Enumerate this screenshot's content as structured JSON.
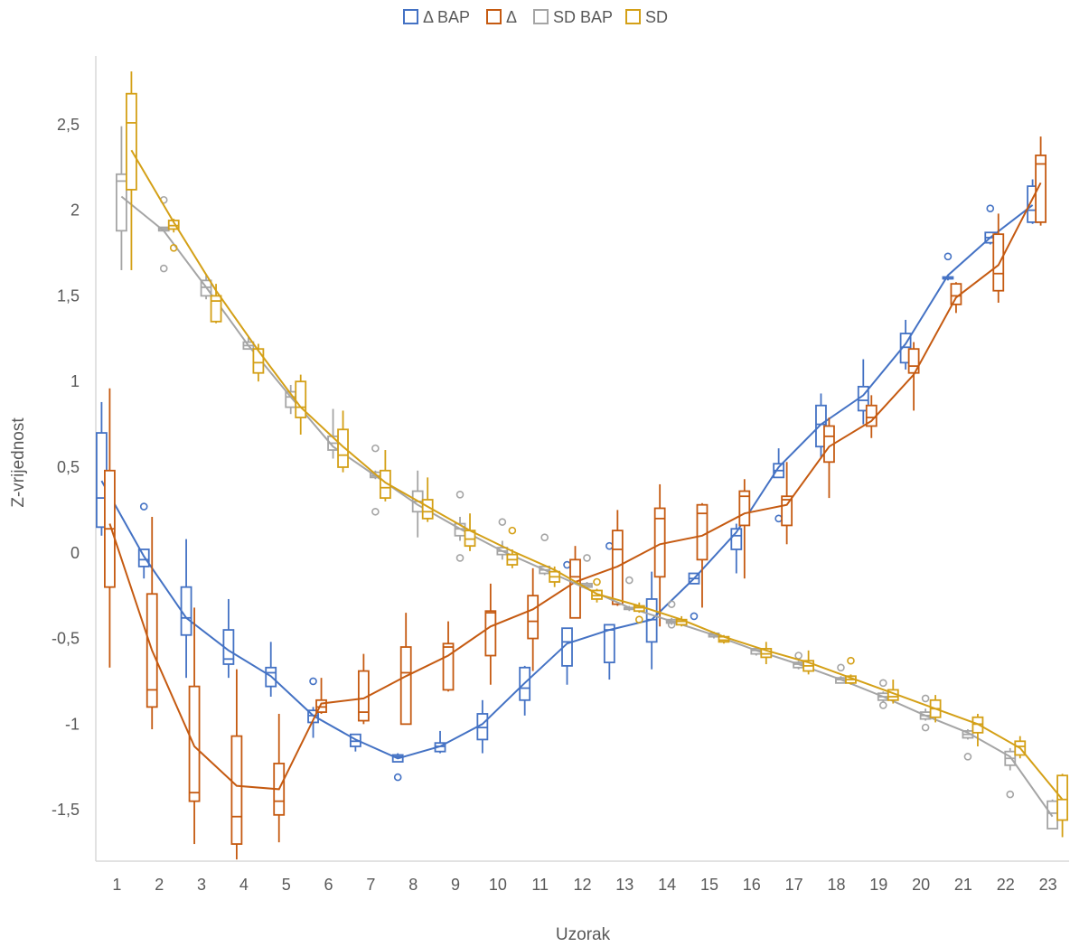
{
  "chart_data": {
    "type": "boxplot",
    "title": "",
    "xlabel": "Uzorak",
    "ylabel": "Z-vrijednost",
    "ylim": [
      -1.8,
      2.9
    ],
    "ytick_values": [
      -1.5,
      -1,
      -0.5,
      0,
      0.5,
      1,
      1.5,
      2,
      2.5
    ],
    "ytick_labels": [
      "-1,5",
      "-1",
      "-0,5",
      "0",
      "0,5",
      "1",
      "1,5",
      "2",
      "2,5"
    ],
    "categories": [
      "1",
      "2",
      "3",
      "4",
      "5",
      "6",
      "7",
      "8",
      "9",
      "10",
      "11",
      "12",
      "13",
      "14",
      "15",
      "16",
      "17",
      "18",
      "19",
      "20",
      "21",
      "22",
      "23"
    ],
    "legend_position": "top",
    "grid": false,
    "series": [
      {
        "name": "Δ BAP",
        "color": "#4472C4",
        "mean": [
          0.42,
          -0.02,
          -0.38,
          -0.57,
          -0.72,
          -0.95,
          -1.09,
          -1.2,
          -1.13,
          -1.0,
          -0.76,
          -0.53,
          -0.45,
          -0.39,
          -0.15,
          0.12,
          0.5,
          0.75,
          0.92,
          1.22,
          1.62,
          1.84,
          2.03
        ],
        "boxes": [
          [
            0.1,
            0.15,
            0.32,
            0.7,
            0.88
          ],
          [
            -0.15,
            -0.08,
            -0.04,
            0.02,
            0.02
          ],
          [
            -0.73,
            -0.48,
            -0.38,
            -0.2,
            0.08
          ],
          [
            -0.73,
            -0.65,
            -0.62,
            -0.45,
            -0.27
          ],
          [
            -0.84,
            -0.78,
            -0.7,
            -0.67,
            -0.52
          ],
          [
            -1.08,
            -0.99,
            -0.95,
            -0.92,
            -0.9
          ],
          [
            -1.16,
            -1.13,
            -1.1,
            -1.06,
            -1.06
          ],
          [
            -1.22,
            -1.22,
            -1.19,
            -1.18,
            -1.17
          ],
          [
            -1.17,
            -1.16,
            -1.13,
            -1.11,
            -1.04
          ],
          [
            -1.17,
            -1.09,
            -1.02,
            -0.94,
            -0.86
          ],
          [
            -0.95,
            -0.86,
            -0.79,
            -0.67,
            -0.66
          ],
          [
            -0.77,
            -0.66,
            -0.52,
            -0.44,
            -0.44
          ],
          [
            -0.74,
            -0.64,
            -0.45,
            -0.42,
            -0.42
          ],
          [
            -0.68,
            -0.52,
            -0.39,
            -0.27,
            -0.11
          ],
          [
            -0.18,
            -0.18,
            -0.15,
            -0.12,
            -0.12
          ],
          [
            -0.12,
            0.02,
            0.1,
            0.14,
            0.17
          ],
          [
            0.44,
            0.44,
            0.48,
            0.52,
            0.61
          ],
          [
            0.55,
            0.62,
            0.75,
            0.86,
            0.93
          ],
          [
            0.75,
            0.83,
            0.89,
            0.97,
            1.13
          ],
          [
            1.07,
            1.11,
            1.2,
            1.28,
            1.36
          ],
          [
            1.59,
            1.6,
            1.6,
            1.61,
            1.62
          ],
          [
            1.8,
            1.81,
            1.84,
            1.87,
            1.87
          ],
          [
            1.92,
            1.93,
            2.0,
            2.14,
            2.18
          ]
        ],
        "outliers": [
          [],
          [
            0.27
          ],
          [],
          [],
          [],
          [
            -0.75
          ],
          [],
          [
            -1.31
          ],
          [],
          [],
          [],
          [
            -0.07
          ],
          [
            0.04
          ],
          [],
          [
            -0.37
          ],
          [],
          [
            0.2
          ],
          [],
          [],
          [],
          [
            1.73
          ],
          [
            2.01
          ],
          []
        ]
      },
      {
        "name": "Δ",
        "color": "#C55A11",
        "mean": [
          0.17,
          -0.57,
          -1.13,
          -1.36,
          -1.38,
          -0.88,
          -0.85,
          -0.72,
          -0.6,
          -0.43,
          -0.33,
          -0.17,
          -0.08,
          0.05,
          0.1,
          0.23,
          0.28,
          0.62,
          0.77,
          1.04,
          1.49,
          1.68,
          2.16
        ],
        "boxes": [
          [
            -0.67,
            -0.2,
            0.14,
            0.48,
            0.96
          ],
          [
            -1.03,
            -0.9,
            -0.8,
            -0.24,
            0.21
          ],
          [
            -1.7,
            -1.45,
            -1.4,
            -0.78,
            -0.32
          ],
          [
            -1.79,
            -1.7,
            -1.54,
            -1.07,
            -0.68
          ],
          [
            -1.69,
            -1.53,
            -1.45,
            -1.23,
            -0.94
          ],
          [
            -0.94,
            -0.93,
            -0.9,
            -0.86,
            -0.73
          ],
          [
            -1.0,
            -0.98,
            -0.93,
            -0.69,
            -0.59
          ],
          [
            -1.0,
            -1.0,
            -0.7,
            -0.55,
            -0.35
          ],
          [
            -0.81,
            -0.8,
            -0.55,
            -0.53,
            -0.4
          ],
          [
            -0.77,
            -0.6,
            -0.35,
            -0.34,
            -0.18
          ],
          [
            -0.69,
            -0.5,
            -0.4,
            -0.25,
            -0.09
          ],
          [
            -0.38,
            -0.38,
            -0.14,
            -0.04,
            0.04
          ],
          [
            -0.31,
            -0.3,
            0.02,
            0.13,
            0.25
          ],
          [
            -0.43,
            -0.14,
            0.2,
            0.26,
            0.4
          ],
          [
            -0.32,
            -0.04,
            0.23,
            0.28,
            0.29
          ],
          [
            -0.15,
            0.16,
            0.33,
            0.36,
            0.43
          ],
          [
            0.05,
            0.16,
            0.31,
            0.33,
            0.53
          ],
          [
            0.32,
            0.53,
            0.68,
            0.74,
            0.79
          ],
          [
            0.67,
            0.74,
            0.79,
            0.86,
            0.92
          ],
          [
            0.83,
            1.05,
            1.09,
            1.19,
            1.23
          ],
          [
            1.4,
            1.45,
            1.5,
            1.57,
            1.58
          ],
          [
            1.46,
            1.53,
            1.63,
            1.86,
            1.98
          ],
          [
            1.91,
            1.93,
            2.27,
            2.32,
            2.43
          ]
        ],
        "outliers": [
          [],
          [],
          [],
          [],
          [],
          [],
          [],
          [],
          [],
          [],
          [],
          [],
          [],
          [],
          [],
          [],
          [],
          [],
          [],
          [],
          [],
          [],
          []
        ]
      },
      {
        "name": "SD BAP",
        "color": "#A5A5A5",
        "mean": [
          2.08,
          1.88,
          1.55,
          1.21,
          0.91,
          0.62,
          0.45,
          0.28,
          0.14,
          0.01,
          -0.1,
          -0.21,
          -0.32,
          -0.4,
          -0.48,
          -0.57,
          -0.65,
          -0.74,
          -0.84,
          -0.95,
          -1.05,
          -1.19,
          -1.54
        ],
        "boxes": [
          [
            1.65,
            1.88,
            2.17,
            2.21,
            2.49
          ],
          [
            1.88,
            1.88,
            1.89,
            1.9,
            1.9
          ],
          [
            1.48,
            1.5,
            1.55,
            1.59,
            1.62
          ],
          [
            1.19,
            1.19,
            1.21,
            1.23,
            1.26
          ],
          [
            0.81,
            0.85,
            0.91,
            0.94,
            0.98
          ],
          [
            0.55,
            0.6,
            0.64,
            0.68,
            0.84
          ],
          [
            0.43,
            0.44,
            0.45,
            0.47,
            0.48
          ],
          [
            0.09,
            0.24,
            0.3,
            0.36,
            0.48
          ],
          [
            0.07,
            0.1,
            0.14,
            0.17,
            0.21
          ],
          [
            -0.04,
            -0.01,
            0.01,
            0.03,
            0.07
          ],
          [
            -0.13,
            -0.12,
            -0.1,
            -0.08,
            -0.07
          ],
          [
            -0.21,
            -0.2,
            -0.19,
            -0.18,
            -0.17
          ],
          [
            -0.34,
            -0.33,
            -0.32,
            -0.32,
            -0.31
          ],
          [
            -0.42,
            -0.41,
            -0.4,
            -0.39,
            -0.38
          ],
          [
            -0.5,
            -0.49,
            -0.48,
            -0.47,
            -0.46
          ],
          [
            -0.6,
            -0.59,
            -0.57,
            -0.56,
            -0.55
          ],
          [
            -0.68,
            -0.67,
            -0.65,
            -0.64,
            -0.63
          ],
          [
            -0.76,
            -0.76,
            -0.74,
            -0.73,
            -0.72
          ],
          [
            -0.87,
            -0.86,
            -0.84,
            -0.82,
            -0.81
          ],
          [
            -0.98,
            -0.97,
            -0.95,
            -0.93,
            -0.91
          ],
          [
            -1.09,
            -1.08,
            -1.06,
            -1.04,
            -1.03
          ],
          [
            -1.27,
            -1.24,
            -1.2,
            -1.16,
            -1.14
          ],
          [
            -1.61,
            -1.61,
            -1.52,
            -1.45,
            -1.44
          ]
        ],
        "outliers": [
          [],
          [
            1.66,
            2.06
          ],
          [],
          [],
          [],
          [],
          [
            0.24,
            0.61
          ],
          [],
          [
            -0.03,
            0.34
          ],
          [
            0.18
          ],
          [
            0.09
          ],
          [
            -0.03
          ],
          [
            -0.16
          ],
          [
            -0.3,
            -0.42
          ],
          [],
          [],
          [
            -0.6
          ],
          [
            -0.67
          ],
          [
            -0.76,
            -0.89
          ],
          [
            -0.85,
            -1.02
          ],
          [
            -1.19
          ],
          [
            -1.41
          ],
          []
        ]
      },
      {
        "name": "SD",
        "color": "#D4A017",
        "mean": [
          2.35,
          1.93,
          1.53,
          1.18,
          0.85,
          0.62,
          0.41,
          0.27,
          0.13,
          0.01,
          -0.1,
          -0.24,
          -0.31,
          -0.39,
          -0.49,
          -0.57,
          -0.64,
          -0.73,
          -0.82,
          -0.91,
          -1.0,
          -1.14,
          -1.44
        ],
        "boxes": [
          [
            1.65,
            2.12,
            2.51,
            2.68,
            2.81
          ],
          [
            1.87,
            1.89,
            1.91,
            1.94,
            1.95
          ],
          [
            1.34,
            1.35,
            1.47,
            1.5,
            1.57
          ],
          [
            1.0,
            1.05,
            1.11,
            1.19,
            1.22
          ],
          [
            0.69,
            0.79,
            0.85,
            1.0,
            1.04
          ],
          [
            0.47,
            0.5,
            0.57,
            0.72,
            0.83
          ],
          [
            0.3,
            0.32,
            0.38,
            0.48,
            0.6
          ],
          [
            0.18,
            0.2,
            0.24,
            0.31,
            0.44
          ],
          [
            0.01,
            0.04,
            0.08,
            0.13,
            0.23
          ],
          [
            -0.09,
            -0.07,
            -0.04,
            -0.01,
            0.02
          ],
          [
            -0.2,
            -0.17,
            -0.14,
            -0.11,
            -0.08
          ],
          [
            -0.29,
            -0.27,
            -0.25,
            -0.22,
            -0.21
          ],
          [
            -0.35,
            -0.34,
            -0.32,
            -0.31,
            -0.29
          ],
          [
            -0.43,
            -0.42,
            -0.4,
            -0.39,
            -0.37
          ],
          [
            -0.53,
            -0.52,
            -0.51,
            -0.49,
            -0.48
          ],
          [
            -0.65,
            -0.61,
            -0.59,
            -0.56,
            -0.52
          ],
          [
            -0.71,
            -0.69,
            -0.66,
            -0.63,
            -0.57
          ],
          [
            -0.77,
            -0.76,
            -0.74,
            -0.72,
            -0.71
          ],
          [
            -0.88,
            -0.86,
            -0.84,
            -0.8,
            -0.74
          ],
          [
            -0.99,
            -0.96,
            -0.91,
            -0.86,
            -0.83
          ],
          [
            -1.13,
            -1.05,
            -1.0,
            -0.96,
            -0.94
          ],
          [
            -1.2,
            -1.18,
            -1.13,
            -1.1,
            -1.07
          ],
          [
            -1.66,
            -1.56,
            -1.44,
            -1.3,
            -1.29
          ]
        ],
        "outliers": [
          [],
          [
            1.78
          ],
          [],
          [],
          [],
          [],
          [],
          [],
          [],
          [
            0.13
          ],
          [],
          [
            -0.17
          ],
          [
            -0.39
          ],
          [],
          [],
          [],
          [],
          [
            -0.63
          ],
          [],
          [],
          [],
          [],
          []
        ]
      }
    ]
  }
}
